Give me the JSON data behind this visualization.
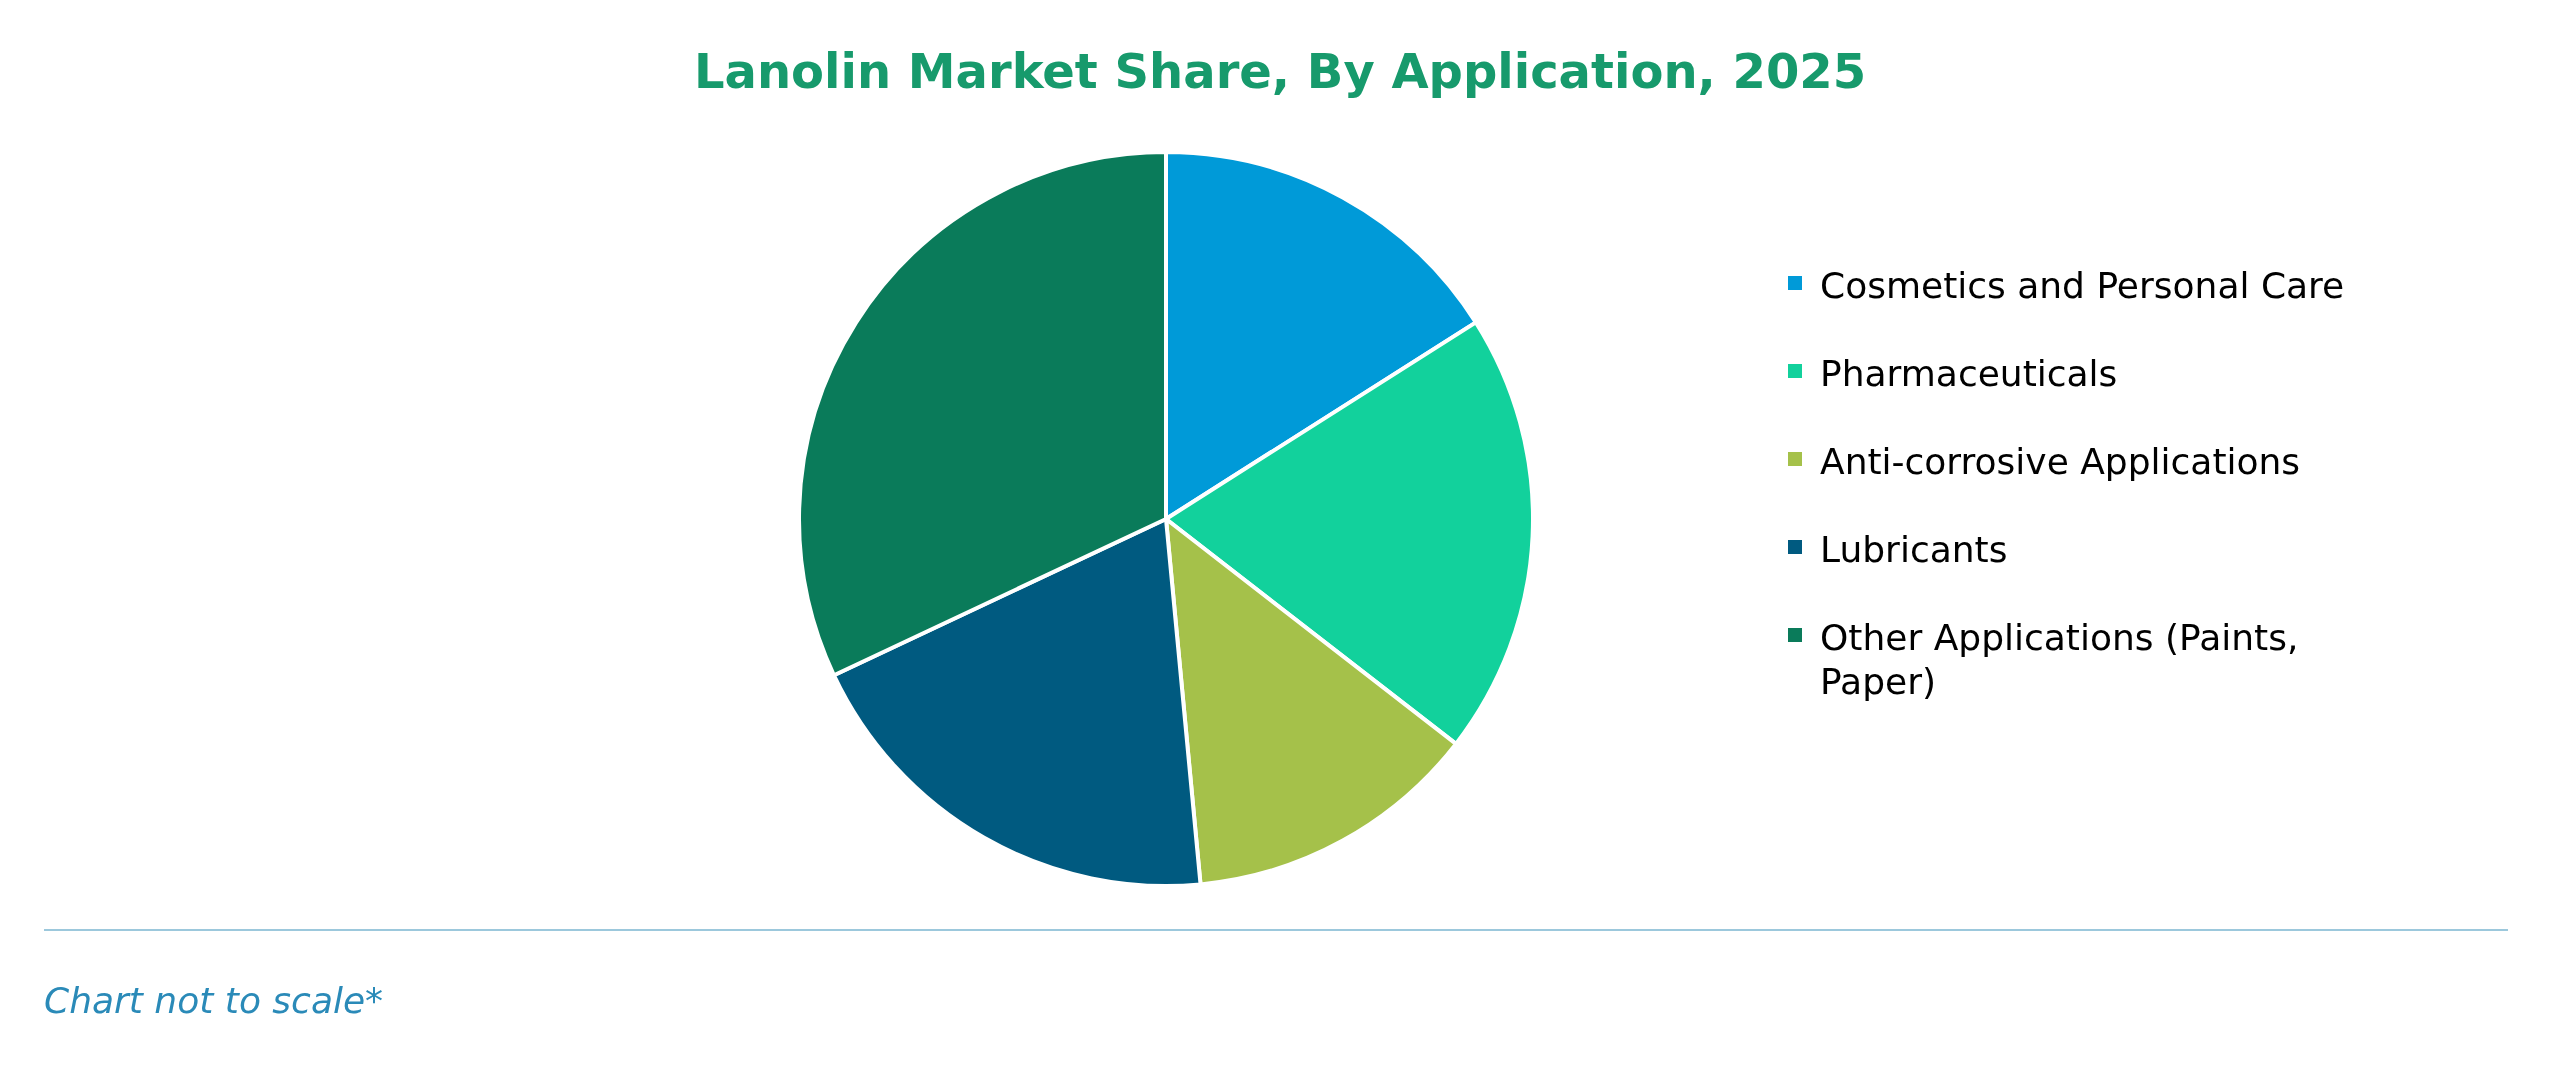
{
  "chart_data": {
    "type": "pie",
    "title": "Lanolin Market Share, By Application, 2025",
    "categories": [
      "Cosmetics and Personal Care",
      "Pharmaceuticals",
      "Anti-corrosive Applications",
      "Lubricants",
      "Other Applications (Paints, Paper)"
    ],
    "values": [
      16,
      19.5,
      13,
      19.5,
      32
    ],
    "colors": [
      "#009ad8",
      "#12d19c",
      "#a5c14a",
      "#005a80",
      "#0a7b5a"
    ],
    "legend": "right",
    "annotations": [
      "Chart not to scale*"
    ]
  }
}
